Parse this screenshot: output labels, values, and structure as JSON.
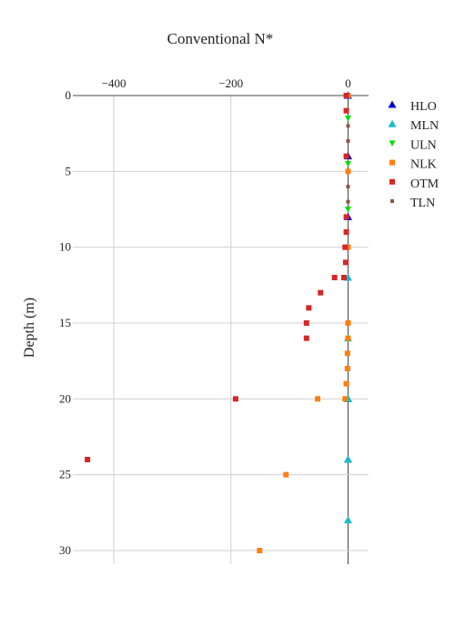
{
  "chart_data": {
    "type": "scatter",
    "title": "Conventional N*",
    "xlabel": "",
    "ylabel": "Depth (m)",
    "xlim": [
      -470,
      35
    ],
    "ylim": [
      31,
      0
    ],
    "y_reversed": true,
    "x_axis_position": "top",
    "xticks": [
      -400,
      -200,
      0
    ],
    "xtick_labels": [
      "−400",
      "−200",
      "0"
    ],
    "yticks": [
      0,
      5,
      10,
      15,
      20,
      25,
      30
    ],
    "ytick_labels": [
      "0",
      "5",
      "10",
      "15",
      "20",
      "25",
      "30"
    ],
    "grid": true,
    "legend_position": "right",
    "series": [
      {
        "name": "HLO",
        "color": "#0000cc",
        "marker": "triangle-up",
        "points": [
          [
            0,
            0
          ],
          [
            0,
            4
          ],
          [
            0,
            8
          ],
          [
            0,
            20
          ],
          [
            0,
            24
          ]
        ]
      },
      {
        "name": "MLN",
        "color": "#17becf",
        "marker": "triangle-up",
        "points": [
          [
            0,
            12
          ],
          [
            0,
            16
          ],
          [
            0,
            20
          ],
          [
            0,
            24
          ],
          [
            0,
            28
          ]
        ]
      },
      {
        "name": "ULN",
        "color": "#00e000",
        "marker": "triangle-down",
        "points": [
          [
            0,
            1.5
          ],
          [
            0,
            4.5
          ],
          [
            0,
            7.5
          ]
        ]
      },
      {
        "name": "NLK",
        "color": "#ff7f0e",
        "marker": "square",
        "points": [
          [
            0,
            0
          ],
          [
            0,
            5
          ],
          [
            0,
            10
          ],
          [
            0,
            15
          ],
          [
            0,
            16
          ],
          [
            -1,
            17
          ],
          [
            -1,
            18
          ],
          [
            -3,
            19
          ],
          [
            -5,
            20
          ],
          [
            -52,
            20
          ],
          [
            -106,
            25
          ],
          [
            -151,
            30
          ]
        ]
      },
      {
        "name": "OTM",
        "color": "#d62728",
        "marker": "square",
        "points": [
          [
            -3,
            0
          ],
          [
            -3,
            1
          ],
          [
            -3,
            4
          ],
          [
            -3,
            8
          ],
          [
            -3,
            9
          ],
          [
            -5,
            10
          ],
          [
            -4,
            11
          ],
          [
            -7,
            12
          ],
          [
            -23,
            12
          ],
          [
            -47,
            13
          ],
          [
            -67,
            14
          ],
          [
            -71,
            15
          ],
          [
            -71,
            16
          ],
          [
            -192,
            20
          ],
          [
            -445,
            24
          ]
        ]
      },
      {
        "name": "TLN",
        "color": "#8c564b",
        "marker": "square-small",
        "points": [
          [
            0,
            2
          ],
          [
            0,
            3
          ],
          [
            0,
            6
          ],
          [
            0,
            7
          ]
        ]
      }
    ]
  }
}
